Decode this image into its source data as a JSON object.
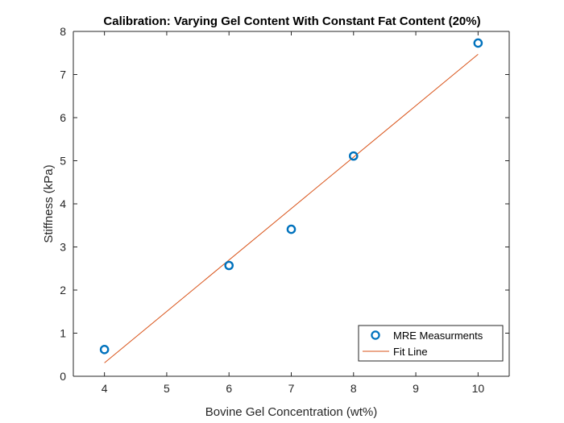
{
  "chart_data": {
    "type": "scatter",
    "title": "Calibration: Varying Gel Content With Constant Fat Content (20%)",
    "xlabel": "Bovine Gel Concentration (wt%)",
    "ylabel": "Stiffness (kPa)",
    "xlim": [
      3.5,
      10.5
    ],
    "ylim": [
      0,
      8
    ],
    "xticks": [
      4,
      5,
      6,
      7,
      8,
      9,
      10
    ],
    "yticks": [
      0,
      1,
      2,
      3,
      4,
      5,
      6,
      7,
      8
    ],
    "x_tick_labels": [
      "4",
      "5",
      "6",
      "7",
      "8",
      "9",
      "10"
    ],
    "y_tick_labels": [
      "0",
      "1",
      "2",
      "3",
      "4",
      "5",
      "6",
      "7",
      "8"
    ],
    "grid": false,
    "legend_position": "bottom-right",
    "series": [
      {
        "name": "MRE Measurments",
        "style": "markers",
        "marker": "circle",
        "color": "#0072BD",
        "x": [
          4,
          6,
          7,
          8,
          10
        ],
        "y": [
          0.62,
          2.57,
          3.41,
          5.11,
          7.73
        ]
      },
      {
        "name": "Fit Line",
        "style": "line",
        "color": "#D95319",
        "x": [
          4,
          10
        ],
        "y": [
          0.31,
          7.47
        ]
      }
    ]
  }
}
